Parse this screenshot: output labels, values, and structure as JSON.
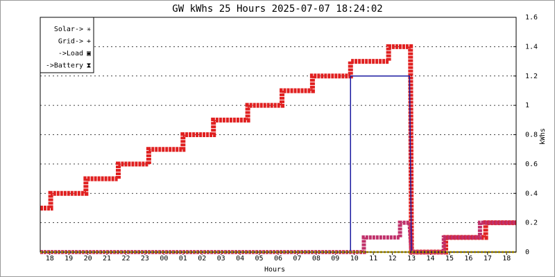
{
  "chart_data": {
    "type": "step-line",
    "title": "GW kWhs 25 Hours 2025-07-07 18:24:02",
    "x_label": "Hours",
    "y_label": "kWhs",
    "xlim": [
      0,
      25
    ],
    "xticks": [
      {
        "value": 0.5,
        "label": "18"
      },
      {
        "value": 1.5,
        "label": "19"
      },
      {
        "value": 2.5,
        "label": "20"
      },
      {
        "value": 3.5,
        "label": "21"
      },
      {
        "value": 4.5,
        "label": "22"
      },
      {
        "value": 5.5,
        "label": "23"
      },
      {
        "value": 6.5,
        "label": "00"
      },
      {
        "value": 7.5,
        "label": "01"
      },
      {
        "value": 8.5,
        "label": "02"
      },
      {
        "value": 9.5,
        "label": "03"
      },
      {
        "value": 10.5,
        "label": "04"
      },
      {
        "value": 11.5,
        "label": "05"
      },
      {
        "value": 12.5,
        "label": "06"
      },
      {
        "value": 13.5,
        "label": "07"
      },
      {
        "value": 14.5,
        "label": "08"
      },
      {
        "value": 15.5,
        "label": "09"
      },
      {
        "value": 16.5,
        "label": "10"
      },
      {
        "value": 17.5,
        "label": "11"
      },
      {
        "value": 18.5,
        "label": "12"
      },
      {
        "value": 19.5,
        "label": "13"
      },
      {
        "value": 20.5,
        "label": "14"
      },
      {
        "value": 21.5,
        "label": "15"
      },
      {
        "value": 22.5,
        "label": "16"
      },
      {
        "value": 23.5,
        "label": "17"
      },
      {
        "value": 24.5,
        "label": "18"
      }
    ],
    "ylim": [
      0,
      1.6
    ],
    "yticks": [
      0,
      0.2,
      0.4,
      0.6,
      0.8,
      1,
      1.2,
      1.4,
      1.6
    ],
    "grid": true,
    "legend": "top-left",
    "series": [
      {
        "name": "Solar->",
        "color": "#ffd700",
        "x": [
          0,
          25
        ],
        "values": [
          0,
          0
        ]
      },
      {
        "name": "Grid->",
        "color": "#1a1aa0",
        "x": [
          0,
          16.3,
          16.3,
          19.4,
          19.5,
          25
        ],
        "values": [
          0,
          0,
          1.2,
          1.2,
          0,
          0
        ]
      },
      {
        "name": "->Load",
        "color": "#e02020",
        "x": [
          0,
          0.55,
          0.55,
          2.4,
          2.4,
          4.1,
          4.1,
          5.7,
          5.7,
          7.5,
          7.5,
          9.1,
          9.1,
          10.9,
          10.9,
          12.7,
          12.7,
          14.3,
          14.3,
          16.3,
          16.3,
          18.3,
          18.3,
          19.45,
          19.5,
          21.3,
          21.3,
          23.4,
          23.4,
          25
        ],
        "values": [
          0.3,
          0.3,
          0.4,
          0.4,
          0.5,
          0.5,
          0.6,
          0.6,
          0.7,
          0.7,
          0.8,
          0.8,
          0.9,
          0.9,
          1,
          1,
          1.1,
          1.1,
          1.2,
          1.2,
          1.3,
          1.3,
          1.4,
          1.4,
          0,
          0,
          0.1,
          0.1,
          0.2,
          0.2
        ]
      },
      {
        "name": "->Battery",
        "color": "#c0306a",
        "x": [
          0,
          17,
          17,
          18.9,
          18.9,
          19.4,
          19.5,
          21.2,
          21.2,
          23.1,
          23.1,
          25
        ],
        "values": [
          0,
          0,
          0.1,
          0.1,
          0.2,
          0.2,
          0,
          0,
          0.1,
          0.1,
          0.2,
          0.2
        ]
      }
    ]
  }
}
